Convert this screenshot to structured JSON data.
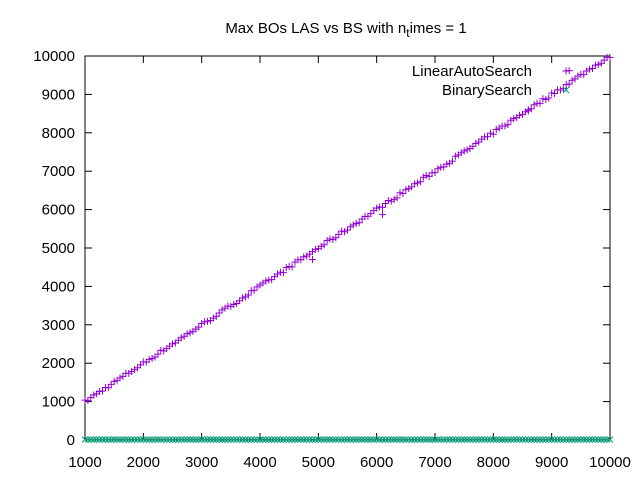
{
  "chart_data": {
    "type": "scatter",
    "title": "Max BOs LAS vs BS with n",
    "title_subscript": "t",
    "title_suffix": "imes = 1",
    "xlabel": "",
    "ylabel": "",
    "xlim": [
      1000,
      10000
    ],
    "ylim": [
      0,
      10000
    ],
    "x_ticks": [
      1000,
      2000,
      3000,
      4000,
      5000,
      6000,
      7000,
      8000,
      9000,
      10000
    ],
    "y_ticks": [
      0,
      1000,
      2000,
      3000,
      4000,
      5000,
      6000,
      7000,
      8000,
      9000,
      10000
    ],
    "grid": false,
    "legend_position": "top-right",
    "series": [
      {
        "name": "LinearAutoSearch",
        "marker": "plus",
        "color": "#9400d3",
        "x_start": 1000,
        "x_step": 50,
        "count": 181,
        "y_trend": "y ≈ x (scatter close to the diagonal)",
        "outliers": [
          [
            4900,
            4700
          ],
          [
            6100,
            5870
          ],
          [
            9300,
            9620
          ],
          [
            8600,
            8600
          ]
        ]
      },
      {
        "name": "BinarySearch",
        "marker": "x",
        "color": "#009e73",
        "x_start": 1000,
        "x_step": 50,
        "count": 181,
        "y_range": [
          10,
          14
        ]
      }
    ]
  }
}
